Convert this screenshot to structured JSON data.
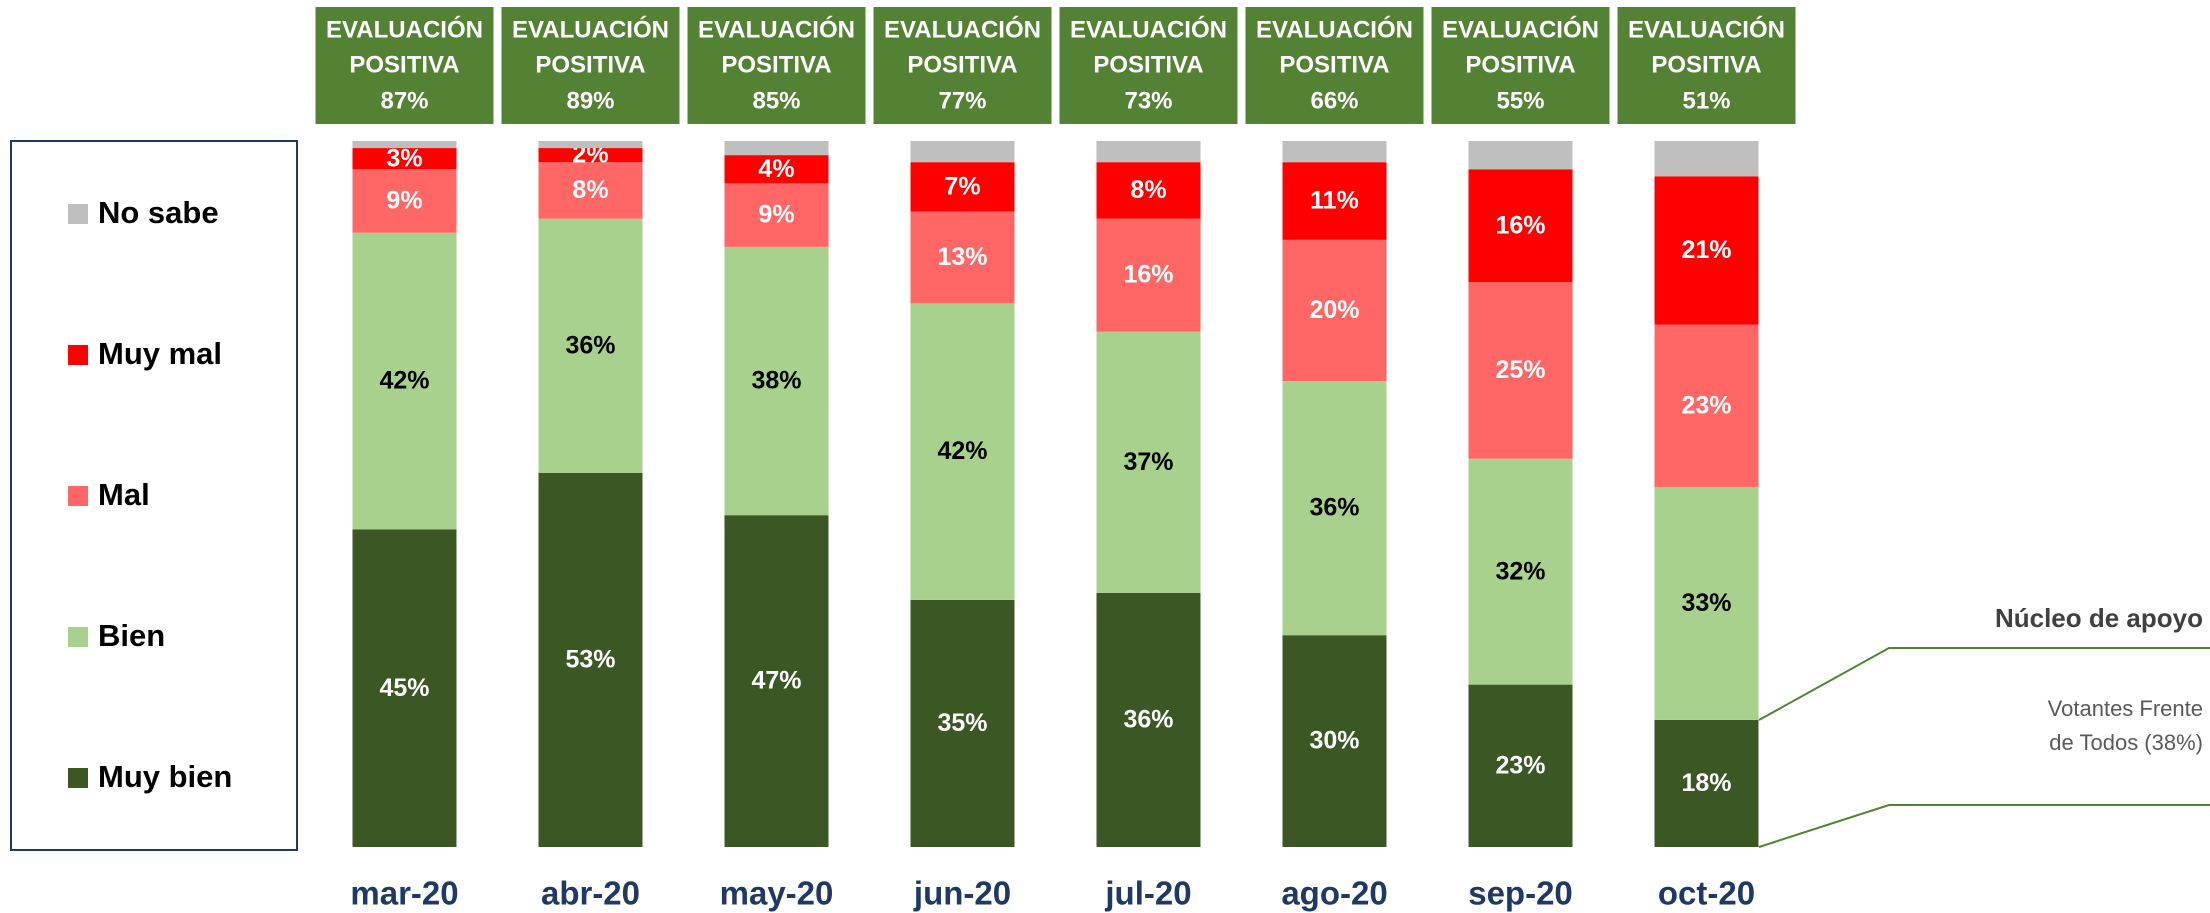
{
  "chart_data": {
    "type": "stacked_bar",
    "categories": [
      "mar-20",
      "abr-20",
      "may-20",
      "jun-20",
      "jul-20",
      "ago-20",
      "sep-20",
      "oct-20"
    ],
    "series": [
      {
        "name": "Muy bien",
        "color": "#3a5724",
        "label_color": "#ffffff",
        "values": [
          45,
          53,
          47,
          35,
          36,
          30,
          23,
          18
        ],
        "value_labels": [
          "45%",
          "53%",
          "47%",
          "35%",
          "36%",
          "30%",
          "23%",
          "18%"
        ]
      },
      {
        "name": "Bien",
        "color": "#a9d18e",
        "label_color": "#000000",
        "values": [
          42,
          36,
          38,
          42,
          37,
          36,
          32,
          33
        ],
        "value_labels": [
          "42%",
          "36%",
          "38%",
          "42%",
          "37%",
          "36%",
          "32%",
          "33%"
        ]
      },
      {
        "name": "Mal",
        "color": "#ff6666",
        "label_color": "#ffffff",
        "values": [
          9,
          8,
          9,
          13,
          16,
          20,
          25,
          23
        ],
        "value_labels": [
          "9%",
          "8%",
          "9%",
          "13%",
          "16%",
          "20%",
          "25%",
          "23%"
        ]
      },
      {
        "name": "Muy mal",
        "color": "#ff0000",
        "label_color": "#ffffff",
        "values": [
          3,
          2,
          4,
          7,
          8,
          11,
          16,
          21
        ],
        "value_labels": [
          "3%",
          "2%",
          "4%",
          "7%",
          "8%",
          "11%",
          "16%",
          "21%"
        ]
      },
      {
        "name": "No sabe",
        "color": "#bfbfbf",
        "values": [
          1,
          1,
          2,
          3,
          3,
          3,
          4,
          5
        ]
      }
    ],
    "positive_evaluation": {
      "label": [
        "EVALUACIÓN",
        "POSITIVA"
      ],
      "color": "#548235",
      "values": [
        87,
        89,
        85,
        77,
        73,
        66,
        55,
        51
      ],
      "value_labels": [
        "87%",
        "89%",
        "85%",
        "77%",
        "73%",
        "66%",
        "55%",
        "51%"
      ]
    },
    "annotation": {
      "title": "Núcleo de apoyo",
      "lines": [
        "Votantes Frente",
        "de Todos (38%)"
      ]
    }
  }
}
